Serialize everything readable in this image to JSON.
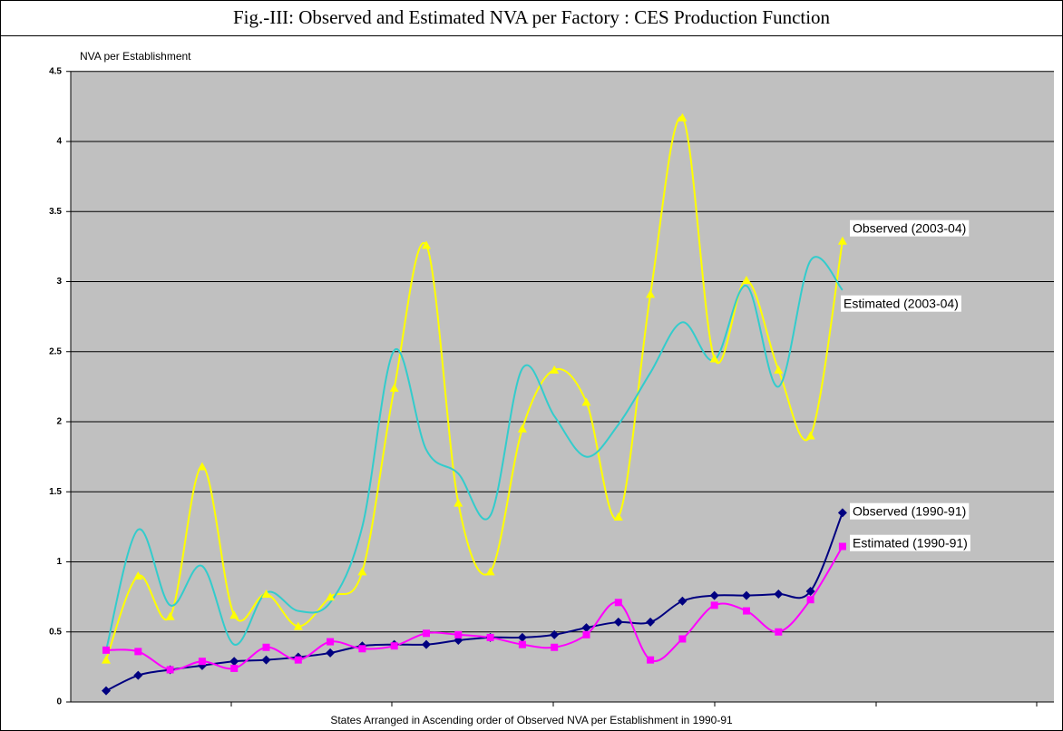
{
  "chart_data": {
    "type": "line",
    "title": "Fig.-III: Observed and Estimated NVA per Factory : CES Production Function",
    "y_label": "NVA  per Establishment",
    "x_label": "States Arranged in Ascending order of Observed NVA per Establishment in 1990-91",
    "categories": [
      null,
      null,
      null,
      null,
      null,
      null,
      null,
      null,
      null,
      null,
      null,
      null,
      null,
      null,
      null,
      null,
      null,
      null,
      null,
      null,
      null,
      null,
      null,
      null
    ],
    "ylim": [
      0,
      4.5
    ],
    "yticks": [
      0,
      0.5,
      1,
      1.5,
      2,
      2.5,
      3,
      3.5,
      4,
      4.5
    ],
    "grid": true,
    "smooth": true,
    "series": [
      {
        "name": "Observed (2003-04)",
        "color": "#ffff00",
        "marker": "triangle",
        "values": [
          0.3,
          0.9,
          0.61,
          1.68,
          0.62,
          0.77,
          0.54,
          0.75,
          0.93,
          2.24,
          3.26,
          1.42,
          0.93,
          1.95,
          2.37,
          2.14,
          1.32,
          2.91,
          4.17,
          2.45,
          3.01,
          2.37,
          1.9,
          3.29
        ]
      },
      {
        "name": "Estimated (2003-04)",
        "color": "#33cccc",
        "marker": "none",
        "values": [
          0.37,
          1.23,
          0.69,
          0.97,
          0.41,
          0.78,
          0.65,
          0.71,
          1.25,
          2.51,
          1.8,
          1.63,
          1.33,
          2.38,
          2.04,
          1.75,
          1.98,
          2.35,
          2.71,
          2.44,
          2.97,
          2.25,
          3.15,
          2.94
        ]
      },
      {
        "name": "Observed (1990-91)",
        "color": "#000080",
        "marker": "diamond",
        "values": [
          0.08,
          0.19,
          0.23,
          0.26,
          0.29,
          0.3,
          0.32,
          0.35,
          0.4,
          0.41,
          0.41,
          0.44,
          0.46,
          0.46,
          0.48,
          0.53,
          0.57,
          0.57,
          0.72,
          0.76,
          0.76,
          0.77,
          0.79,
          1.35
        ]
      },
      {
        "name": "Estimated (1990-91)",
        "color": "#ff00ff",
        "marker": "square",
        "values": [
          0.37,
          0.36,
          0.23,
          0.29,
          0.24,
          0.39,
          0.3,
          0.43,
          0.38,
          0.4,
          0.49,
          0.48,
          0.46,
          0.41,
          0.39,
          0.48,
          0.71,
          0.3,
          0.45,
          0.69,
          0.65,
          0.5,
          0.73,
          1.11
        ]
      }
    ]
  }
}
